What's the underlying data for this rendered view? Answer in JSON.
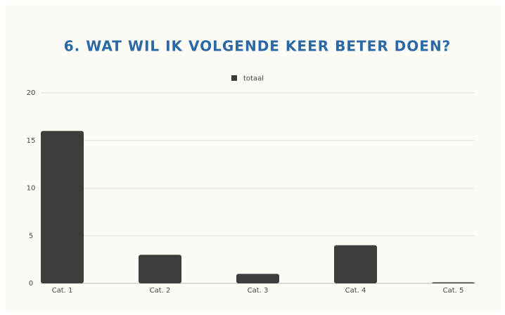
{
  "chart_data": {
    "type": "bar",
    "title": "6. WAT WIL IK VOLGENDE KEER BETER DOEN?",
    "categories": [
      "Cat. 1",
      "Cat. 2",
      "Cat. 3",
      "Cat. 4",
      "Cat. 5"
    ],
    "series": [
      {
        "name": "totaal",
        "color": "#3d3d3d",
        "values": [
          16,
          3,
          1,
          4,
          0
        ]
      }
    ],
    "ylim": [
      0,
      20
    ],
    "yticks": [
      0,
      5,
      10,
      15,
      20
    ],
    "grid": true,
    "legend": "top"
  }
}
